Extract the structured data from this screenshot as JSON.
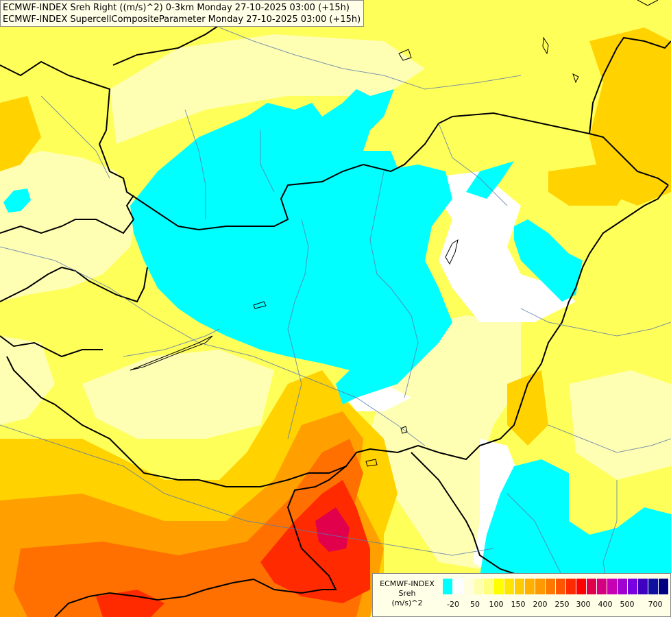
{
  "titles": {
    "line1": "ECMWF-INDEX Sreh Right ((m/s)^2) 0-3km Monday 27-10-2025 03:00 (+15h)",
    "line2": "ECMWF-INDEX SupercellCompositeParameter Monday 27-10-2025 03:00 (+15h)"
  },
  "legend": {
    "model": "ECMWF-INDEX",
    "parameter": "Sreh",
    "unit": "(m/s)^2",
    "colors": [
      "#00ffff",
      "#ffffff",
      "#ffffe0",
      "#ffffb0",
      "#ffff80",
      "#ffff00",
      "#ffe600",
      "#ffcc00",
      "#ffb000",
      "#ff9900",
      "#ff7800",
      "#ff5500",
      "#ff2a00",
      "#ff0000",
      "#e0004b",
      "#d40080",
      "#c800b4",
      "#a000d0",
      "#7800e0",
      "#4000c0",
      "#1010a0",
      "#000080"
    ],
    "tick_labels": [
      "-20",
      "50",
      "100",
      "150",
      "200",
      "250",
      "300",
      "400",
      "500",
      "700"
    ]
  },
  "palette": {
    "cyan_negative": "#00ffff",
    "white": "#ffffff",
    "pale": "#ffffc0",
    "yellow": "#ffff66",
    "gold": "#ffe600",
    "orange": "#ffb000",
    "dark_orange": "#ff7800",
    "red": "#ff2a00",
    "crimson": "#e0004b"
  }
}
